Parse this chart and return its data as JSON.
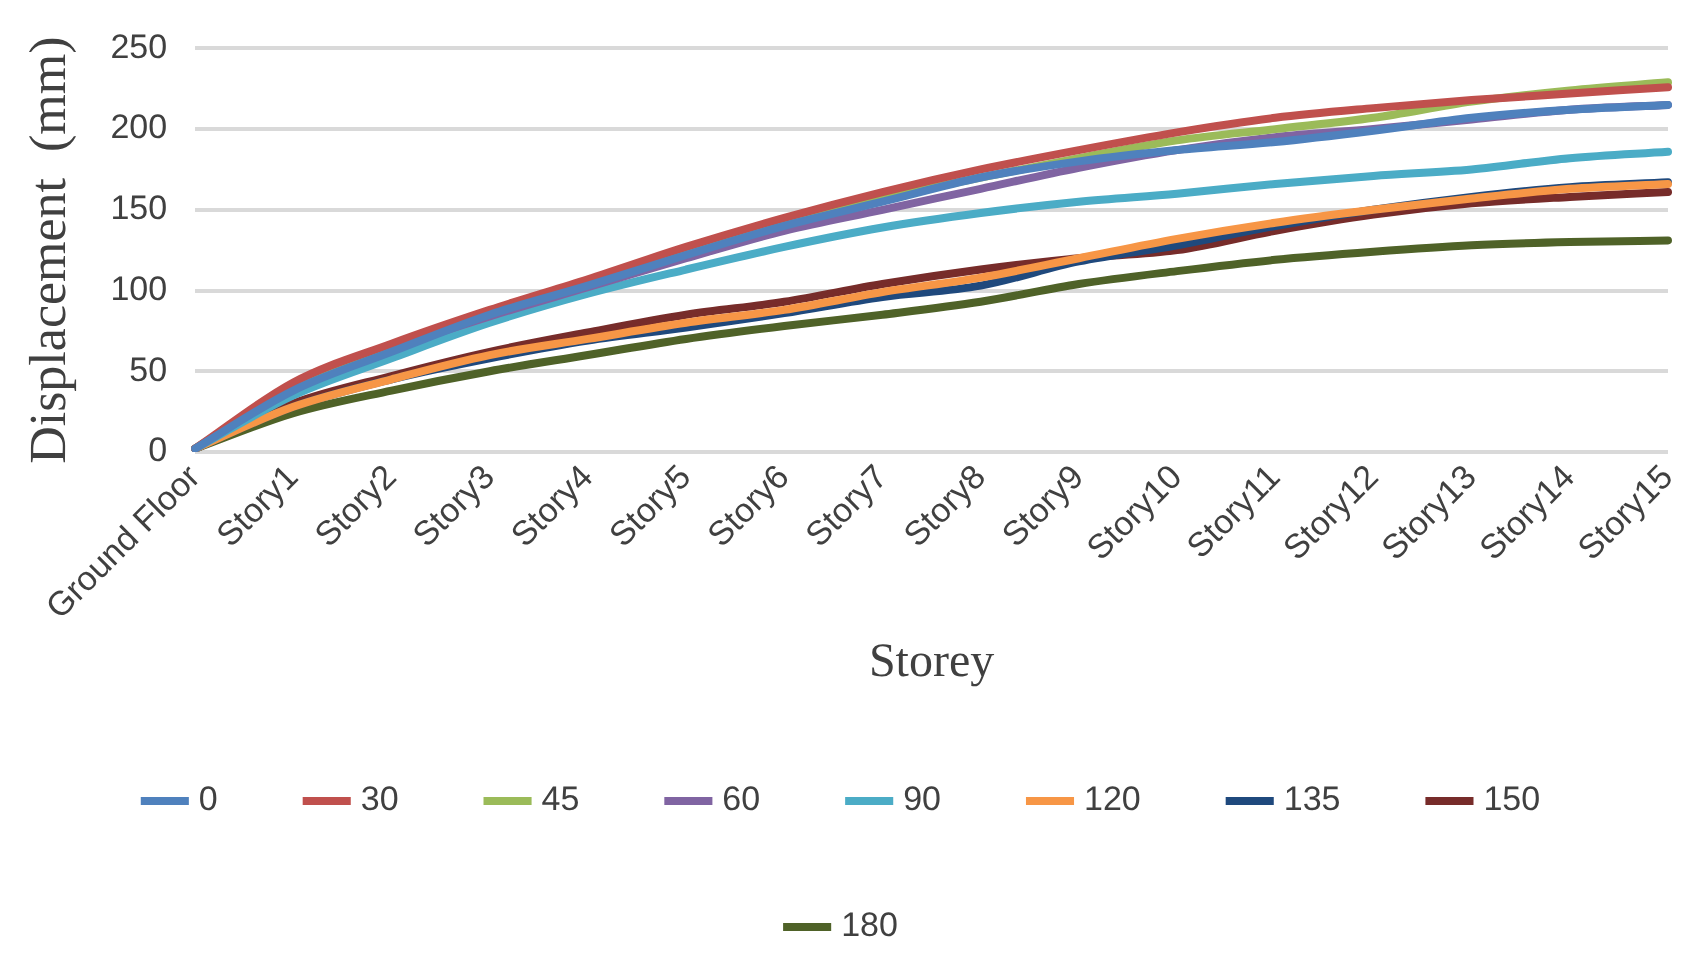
{
  "chart_data": {
    "type": "line",
    "xlabel": "Storey",
    "ylabel": "Displacement  (mm)",
    "categories": [
      "Ground Floor",
      "Story1",
      "Story2",
      "Story3",
      "Story4",
      "Story5",
      "Story6",
      "Story7",
      "Story8",
      "Story9",
      "Story10",
      "Story11",
      "Story12",
      "Story13",
      "Story14",
      "Story15"
    ],
    "series": [
      {
        "name": "0",
        "color": "#4f81bd",
        "values": [
          2,
          38,
          62,
          85,
          103,
          122,
          140,
          155,
          170,
          180,
          187,
          192,
          199,
          207,
          212,
          215
        ]
      },
      {
        "name": "30",
        "color": "#c0504d",
        "values": [
          2,
          43,
          67,
          88,
          107,
          127,
          145,
          161,
          175,
          187,
          198,
          207,
          213,
          218,
          222,
          226
        ]
      },
      {
        "name": "45",
        "color": "#9bbb59",
        "values": [
          2,
          40,
          64,
          86,
          105,
          124,
          142,
          157,
          170,
          182,
          193,
          200,
          207,
          217,
          224,
          229
        ]
      },
      {
        "name": "60",
        "color": "#8064a2",
        "values": [
          2,
          40,
          64,
          84,
          102,
          120,
          137,
          150,
          163,
          176,
          187,
          195,
          200,
          206,
          212,
          215
        ]
      },
      {
        "name": "90",
        "color": "#4bacc6",
        "values": [
          2,
          35,
          58,
          80,
          98,
          113,
          127,
          139,
          148,
          155,
          160,
          166,
          171,
          175,
          182,
          186
        ]
      },
      {
        "name": "120",
        "color": "#f79646",
        "values": [
          2,
          28,
          45,
          60,
          70,
          80,
          88,
          99,
          108,
          120,
          132,
          142,
          150,
          157,
          163,
          166
        ]
      },
      {
        "name": "135",
        "color": "#1f497d",
        "values": [
          2,
          28,
          45,
          58,
          69,
          77,
          86,
          96,
          103,
          118,
          128,
          140,
          150,
          158,
          164,
          167
        ]
      },
      {
        "name": "150",
        "color": "#772c2a",
        "values": [
          2,
          30,
          47,
          62,
          74,
          85,
          93,
          104,
          113,
          120,
          125,
          137,
          147,
          154,
          158,
          161
        ]
      },
      {
        "name": "180",
        "color": "#4f6228",
        "values": [
          2,
          24,
          38,
          50,
          60,
          70,
          78,
          85,
          93,
          104,
          112,
          119,
          124,
          128,
          130,
          131
        ]
      }
    ],
    "ylim": [
      0,
      250
    ],
    "yticks": [
      0,
      50,
      100,
      150,
      200,
      250
    ],
    "grid": "y",
    "legend": "bottom",
    "marker": "none",
    "line_style": "solid"
  }
}
